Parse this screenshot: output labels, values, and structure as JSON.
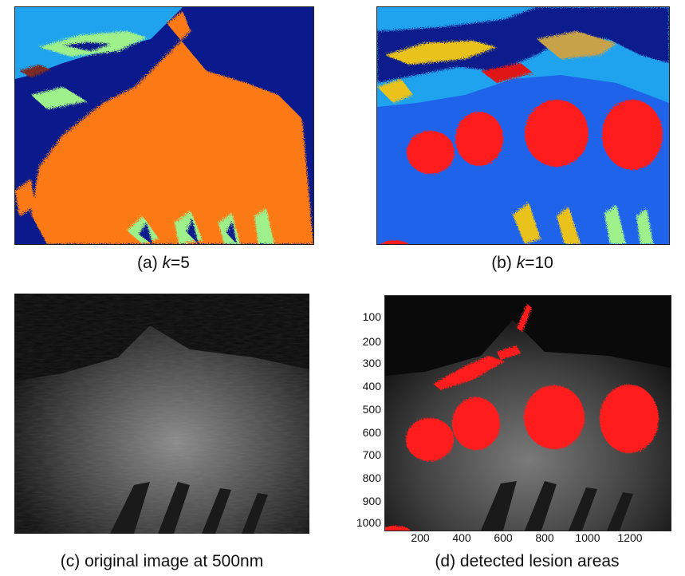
{
  "figure": {
    "panels": [
      {
        "id": "a",
        "caption_prefix": "(a) ",
        "caption_var": "k",
        "caption_suffix": "=5"
      },
      {
        "id": "b",
        "caption_prefix": "(b) ",
        "caption_var": "k",
        "caption_suffix": "=10"
      },
      {
        "id": "c",
        "caption": "(c) original image at 500nm"
      },
      {
        "id": "d",
        "caption": "(d) detected lesion areas"
      }
    ],
    "colors": {
      "cluster_navy": "#0a1a8c",
      "cluster_cyan": "#1fa3ef",
      "cluster_orange": "#fb7a12",
      "cluster_green": "#9ef08a",
      "cluster_red": "#e01212",
      "cluster_blue": "#1f63ea",
      "cluster_yellow": "#e9c21c",
      "cluster_tan": "#c8a24a",
      "lesion_red": "#ff1a1a"
    }
  },
  "axes_d": {
    "y_ticks": [
      "100",
      "200",
      "300",
      "400",
      "500",
      "600",
      "700",
      "800",
      "900",
      "1000"
    ],
    "x_ticks": [
      "200",
      "400",
      "600",
      "800",
      "1000",
      "1200"
    ]
  }
}
